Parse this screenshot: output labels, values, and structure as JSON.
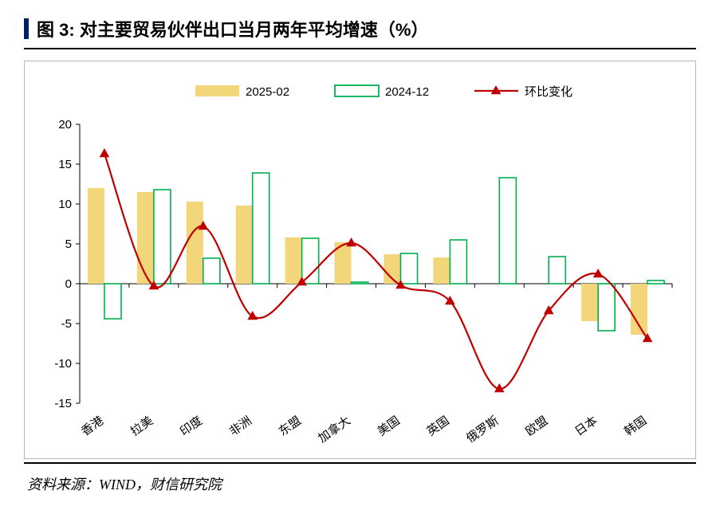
{
  "title": {
    "prefix": "图 3:",
    "text": "对主要贸易伙伴出口当月两年平均增速（%）"
  },
  "source": "资料来源：WIND，财信研究院",
  "chart": {
    "type": "bar+line",
    "categories": [
      "香港",
      "拉美",
      "印度",
      "非洲",
      "东盟",
      "加拿大",
      "美国",
      "英国",
      "俄罗斯",
      "欧盟",
      "日本",
      "韩国"
    ],
    "series": [
      {
        "name": "2025-02",
        "kind": "bar-filled",
        "color": "#f3d67a",
        "values": [
          12.0,
          11.5,
          10.3,
          9.8,
          5.8,
          5.2,
          3.7,
          3.3,
          0.0,
          0.0,
          -4.7,
          -6.4
        ]
      },
      {
        "name": "2024-12",
        "kind": "bar-outline",
        "color": "#00b050",
        "values": [
          -4.4,
          11.8,
          3.2,
          13.9,
          5.7,
          0.2,
          3.8,
          5.5,
          13.3,
          3.4,
          -5.9,
          0.4
        ]
      },
      {
        "name": "环比变化",
        "kind": "line",
        "color": "#c00000",
        "marker": "triangle",
        "values": [
          16.3,
          -0.3,
          7.2,
          -4.1,
          0.2,
          5.1,
          -0.2,
          -2.2,
          -13.2,
          -3.4,
          1.2,
          -6.9
        ]
      }
    ],
    "ylim": [
      -15,
      20
    ],
    "ytick_step": 5,
    "axis_color": "#000000",
    "axis_fontsize": 15,
    "cat_fontsize": 15,
    "cat_rotation": -35,
    "legend_fontsize": 15,
    "background": "#ffffff",
    "panel_border": "#b7b7b7",
    "bar_width": 0.34,
    "line_width": 2.2,
    "marker_size": 7
  }
}
